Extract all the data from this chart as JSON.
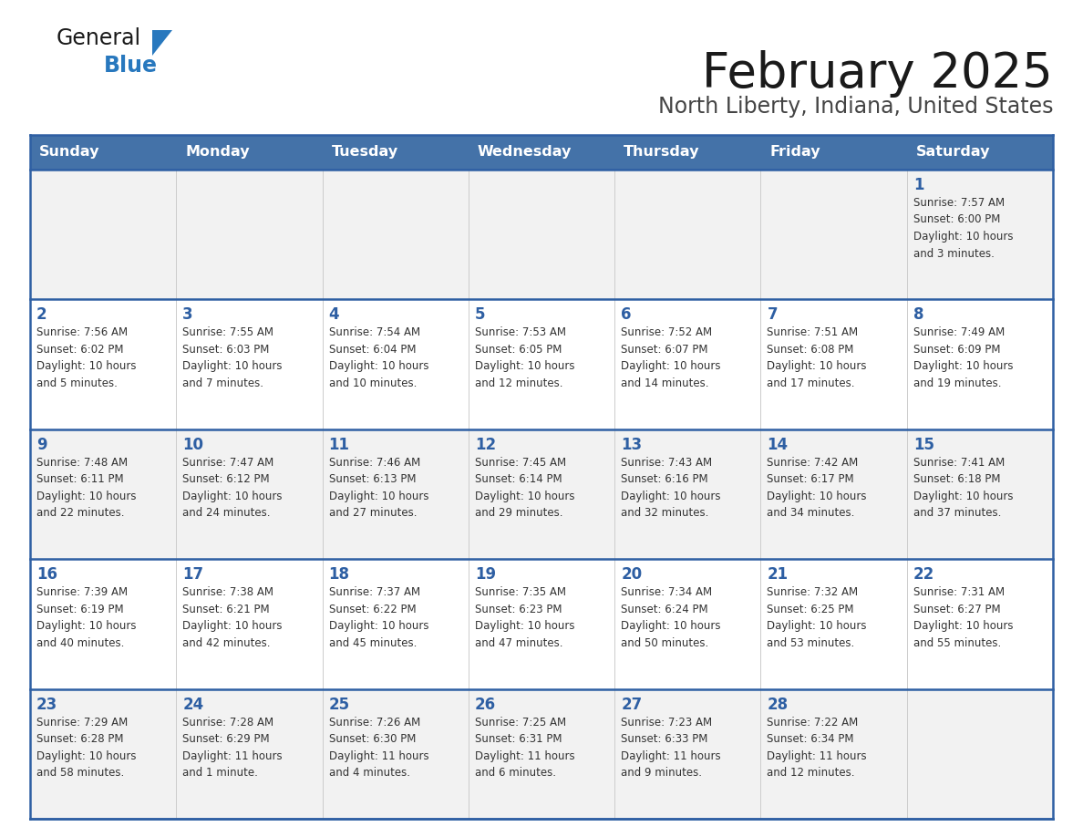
{
  "title": "February 2025",
  "subtitle": "North Liberty, Indiana, United States",
  "header_bg": "#4472a8",
  "header_text_color": "#ffffff",
  "cell_bg_odd": "#f2f2f2",
  "cell_bg_even": "#ffffff",
  "day_number_color": "#2e5fa3",
  "info_text_color": "#333333",
  "grid_line_color": "#2e5fa3",
  "outer_border_color": "#2e5fa3",
  "days_of_week": [
    "Sunday",
    "Monday",
    "Tuesday",
    "Wednesday",
    "Thursday",
    "Friday",
    "Saturday"
  ],
  "calendar_data": [
    [
      {
        "day": "",
        "info": ""
      },
      {
        "day": "",
        "info": ""
      },
      {
        "day": "",
        "info": ""
      },
      {
        "day": "",
        "info": ""
      },
      {
        "day": "",
        "info": ""
      },
      {
        "day": "",
        "info": ""
      },
      {
        "day": "1",
        "info": "Sunrise: 7:57 AM\nSunset: 6:00 PM\nDaylight: 10 hours\nand 3 minutes."
      }
    ],
    [
      {
        "day": "2",
        "info": "Sunrise: 7:56 AM\nSunset: 6:02 PM\nDaylight: 10 hours\nand 5 minutes."
      },
      {
        "day": "3",
        "info": "Sunrise: 7:55 AM\nSunset: 6:03 PM\nDaylight: 10 hours\nand 7 minutes."
      },
      {
        "day": "4",
        "info": "Sunrise: 7:54 AM\nSunset: 6:04 PM\nDaylight: 10 hours\nand 10 minutes."
      },
      {
        "day": "5",
        "info": "Sunrise: 7:53 AM\nSunset: 6:05 PM\nDaylight: 10 hours\nand 12 minutes."
      },
      {
        "day": "6",
        "info": "Sunrise: 7:52 AM\nSunset: 6:07 PM\nDaylight: 10 hours\nand 14 minutes."
      },
      {
        "day": "7",
        "info": "Sunrise: 7:51 AM\nSunset: 6:08 PM\nDaylight: 10 hours\nand 17 minutes."
      },
      {
        "day": "8",
        "info": "Sunrise: 7:49 AM\nSunset: 6:09 PM\nDaylight: 10 hours\nand 19 minutes."
      }
    ],
    [
      {
        "day": "9",
        "info": "Sunrise: 7:48 AM\nSunset: 6:11 PM\nDaylight: 10 hours\nand 22 minutes."
      },
      {
        "day": "10",
        "info": "Sunrise: 7:47 AM\nSunset: 6:12 PM\nDaylight: 10 hours\nand 24 minutes."
      },
      {
        "day": "11",
        "info": "Sunrise: 7:46 AM\nSunset: 6:13 PM\nDaylight: 10 hours\nand 27 minutes."
      },
      {
        "day": "12",
        "info": "Sunrise: 7:45 AM\nSunset: 6:14 PM\nDaylight: 10 hours\nand 29 minutes."
      },
      {
        "day": "13",
        "info": "Sunrise: 7:43 AM\nSunset: 6:16 PM\nDaylight: 10 hours\nand 32 minutes."
      },
      {
        "day": "14",
        "info": "Sunrise: 7:42 AM\nSunset: 6:17 PM\nDaylight: 10 hours\nand 34 minutes."
      },
      {
        "day": "15",
        "info": "Sunrise: 7:41 AM\nSunset: 6:18 PM\nDaylight: 10 hours\nand 37 minutes."
      }
    ],
    [
      {
        "day": "16",
        "info": "Sunrise: 7:39 AM\nSunset: 6:19 PM\nDaylight: 10 hours\nand 40 minutes."
      },
      {
        "day": "17",
        "info": "Sunrise: 7:38 AM\nSunset: 6:21 PM\nDaylight: 10 hours\nand 42 minutes."
      },
      {
        "day": "18",
        "info": "Sunrise: 7:37 AM\nSunset: 6:22 PM\nDaylight: 10 hours\nand 45 minutes."
      },
      {
        "day": "19",
        "info": "Sunrise: 7:35 AM\nSunset: 6:23 PM\nDaylight: 10 hours\nand 47 minutes."
      },
      {
        "day": "20",
        "info": "Sunrise: 7:34 AM\nSunset: 6:24 PM\nDaylight: 10 hours\nand 50 minutes."
      },
      {
        "day": "21",
        "info": "Sunrise: 7:32 AM\nSunset: 6:25 PM\nDaylight: 10 hours\nand 53 minutes."
      },
      {
        "day": "22",
        "info": "Sunrise: 7:31 AM\nSunset: 6:27 PM\nDaylight: 10 hours\nand 55 minutes."
      }
    ],
    [
      {
        "day": "23",
        "info": "Sunrise: 7:29 AM\nSunset: 6:28 PM\nDaylight: 10 hours\nand 58 minutes."
      },
      {
        "day": "24",
        "info": "Sunrise: 7:28 AM\nSunset: 6:29 PM\nDaylight: 11 hours\nand 1 minute."
      },
      {
        "day": "25",
        "info": "Sunrise: 7:26 AM\nSunset: 6:30 PM\nDaylight: 11 hours\nand 4 minutes."
      },
      {
        "day": "26",
        "info": "Sunrise: 7:25 AM\nSunset: 6:31 PM\nDaylight: 11 hours\nand 6 minutes."
      },
      {
        "day": "27",
        "info": "Sunrise: 7:23 AM\nSunset: 6:33 PM\nDaylight: 11 hours\nand 9 minutes."
      },
      {
        "day": "28",
        "info": "Sunrise: 7:22 AM\nSunset: 6:34 PM\nDaylight: 11 hours\nand 12 minutes."
      },
      {
        "day": "",
        "info": ""
      }
    ]
  ],
  "logo_general_color": "#1a1a1a",
  "logo_blue_color": "#2878be",
  "logo_triangle_color": "#2878be",
  "title_color": "#1a1a1a",
  "subtitle_color": "#444444"
}
